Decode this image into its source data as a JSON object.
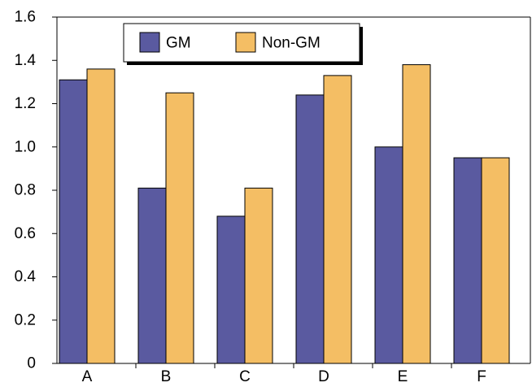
{
  "chart_data": {
    "type": "bar",
    "categories": [
      "A",
      "B",
      "C",
      "D",
      "E",
      "F"
    ],
    "series": [
      {
        "name": "GM",
        "values": [
          1.31,
          0.81,
          0.68,
          1.24,
          1.0,
          0.95
        ]
      },
      {
        "name": "Non-GM",
        "values": [
          1.36,
          1.25,
          0.81,
          1.33,
          1.38,
          0.95
        ]
      }
    ],
    "y_ticks": [
      "0",
      "0.2",
      "0.4",
      "0.6",
      "0.8",
      "1.0",
      "1.2",
      "1.4",
      "1.6"
    ],
    "ylim": [
      0,
      1.6
    ],
    "grid": false,
    "legend": "top-left",
    "colors": {
      "GM": "#5a5aa0",
      "Non-GM": "#f4be64"
    }
  }
}
